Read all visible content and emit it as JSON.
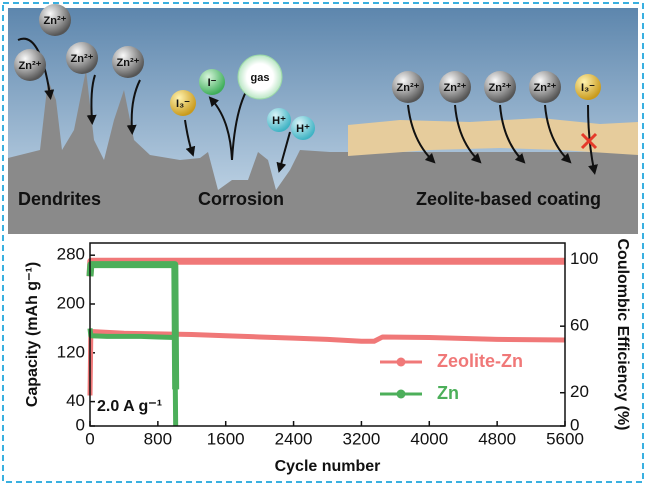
{
  "diagram": {
    "labels": [
      "Dendrites",
      "Corrosion",
      "Zeolite-based coating"
    ],
    "ions": [
      "Zn²⁺",
      "Zn²⁺",
      "Zn²⁺",
      "Zn²⁺",
      "I₃⁻",
      "I⁻",
      "gas",
      "H⁺",
      "H⁺",
      "Zn²⁺",
      "Zn²⁺",
      "Zn²⁺",
      "Zn²⁺",
      "I₃⁻"
    ]
  },
  "chart_data": {
    "type": "line",
    "xlabel": "Cycle number",
    "ylabel": "Capacity (mAh g⁻¹)",
    "y2label": "Coulombic Efficiency (%)",
    "annotation": "2.0 A g⁻¹",
    "xlim": [
      0,
      5600
    ],
    "xticks": [
      0,
      800,
      1600,
      2400,
      3200,
      4000,
      4800,
      5600
    ],
    "ylim": [
      0,
      300
    ],
    "yticks": [
      0,
      40,
      120,
      200,
      280
    ],
    "y2lim": [
      0,
      110
    ],
    "y2ticks": [
      0,
      20,
      60,
      100
    ],
    "legend": "right",
    "series": [
      {
        "name": "Zeolite-Zn",
        "color": "#f07878",
        "x": [
          0,
          10,
          400,
          800,
          1200,
          1600,
          2000,
          2400,
          2800,
          3200,
          3350,
          3450,
          4000,
          4800,
          5600
        ],
        "values": [
          50,
          155,
          152,
          151,
          150,
          148,
          146,
          144,
          142,
          139,
          139,
          146,
          145,
          142,
          141
        ],
        "ce": [
          90,
          99,
          99,
          99,
          99,
          99,
          99,
          99,
          99,
          99,
          99,
          99,
          99,
          99,
          99
        ]
      },
      {
        "name": "Zn",
        "color": "#4caf5a",
        "x": [
          0,
          10,
          200,
          400,
          600,
          800,
          1000,
          1010
        ],
        "values": [
          160,
          148,
          147,
          147,
          147,
          146,
          145,
          0
        ],
        "ce": [
          90,
          97,
          97,
          97,
          97,
          97,
          97,
          22
        ]
      }
    ]
  }
}
